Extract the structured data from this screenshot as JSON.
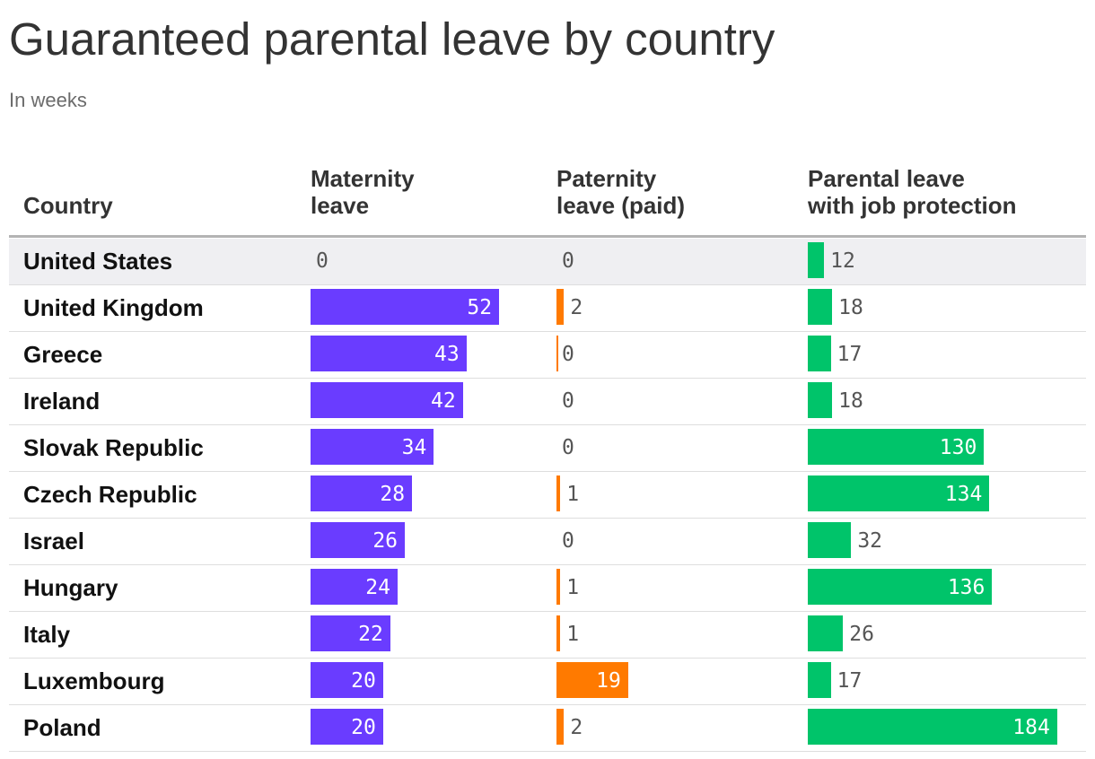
{
  "title": "Guaranteed parental leave by country",
  "subtitle": "In weeks",
  "headers": {
    "country": "Country",
    "maternity": [
      "Maternity",
      "leave"
    ],
    "paternity": [
      "Paternity",
      "leave (paid)"
    ],
    "parental": [
      "Parental leave",
      "with job protection"
    ]
  },
  "colors": {
    "maternity": "#6a3cff",
    "paternity": "#ff7a00",
    "parental": "#00c46a",
    "highlight_row": "#efeff2"
  },
  "chart_data": {
    "type": "table",
    "title": "Guaranteed parental leave by country",
    "subtitle": "In weeks",
    "columns": [
      "Country",
      "Maternity leave",
      "Paternity leave (paid)",
      "Parental leave with job protection"
    ],
    "rows": [
      {
        "country": "United States",
        "maternity": 0,
        "paternity": 0,
        "parental": 12,
        "highlight": true
      },
      {
        "country": "United Kingdom",
        "maternity": 52,
        "paternity": 2,
        "parental": 18
      },
      {
        "country": "Greece",
        "maternity": 43,
        "paternity": 0,
        "parental": 17
      },
      {
        "country": "Ireland",
        "maternity": 42,
        "paternity": 0,
        "parental": 18
      },
      {
        "country": "Slovak Republic",
        "maternity": 34,
        "paternity": 0,
        "parental": 130
      },
      {
        "country": "Czech Republic",
        "maternity": 28,
        "paternity": 1,
        "parental": 134
      },
      {
        "country": "Israel",
        "maternity": 26,
        "paternity": 0,
        "parental": 32
      },
      {
        "country": "Hungary",
        "maternity": 24,
        "paternity": 1,
        "parental": 136
      },
      {
        "country": "Italy",
        "maternity": 22,
        "paternity": 1,
        "parental": 26
      },
      {
        "country": "Luxembourg",
        "maternity": 20,
        "paternity": 19,
        "parental": 17
      },
      {
        "country": "Poland",
        "maternity": 20,
        "paternity": 2,
        "parental": 184
      }
    ]
  }
}
